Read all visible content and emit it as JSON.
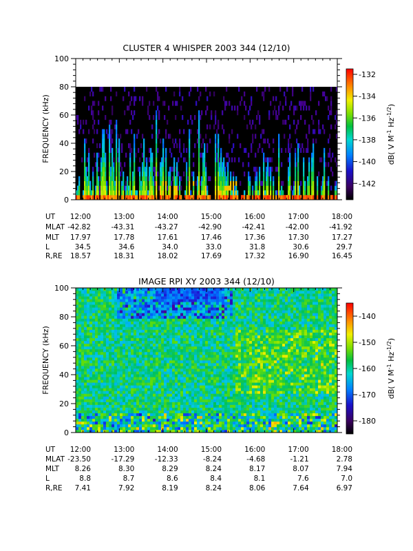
{
  "chart_data": [
    {
      "type": "heatmap",
      "title": "CLUSTER 4 WHISPER 2003 344 (12/10)",
      "ylabel": "FREQUENCY (kHz)",
      "ylim": [
        0,
        100
      ],
      "yticks": [
        "0",
        "20",
        "40",
        "60",
        "80",
        "100"
      ],
      "data_ylim": [
        0,
        80
      ],
      "colorbar": {
        "label": "dB( V M",
        "sup1": "-1",
        "mid": " Hz",
        "sup2": "-1/2",
        "end": ")",
        "range": [
          -143.5,
          -131.5
        ],
        "ticks": [
          "-132",
          "-134",
          "-136",
          "-138",
          "-140",
          "-142"
        ]
      },
      "xticks": [
        "12:00",
        "13:00",
        "14:00",
        "15:00",
        "16:00",
        "17:00",
        "18:00"
      ],
      "x_range_hours": [
        12,
        18
      ],
      "ephemeris": [
        {
          "label": "UT",
          "values": [
            "12:00",
            "13:00",
            "14:00",
            "15:00",
            "16:00",
            "17:00",
            "18:00"
          ]
        },
        {
          "label": "MLAT",
          "values": [
            "-42.82",
            "-43.31",
            "-43.27",
            "-42.90",
            "-42.41",
            "-42.00",
            "-41.92"
          ]
        },
        {
          "label": "MLT",
          "values": [
            "17.97",
            "17.78",
            "17.61",
            "17.46",
            "17.36",
            "17.30",
            "17.27"
          ]
        },
        {
          "label": "L",
          "values": [
            "34.5",
            "34.6",
            "34.0",
            "33.0",
            "31.8",
            "30.6",
            "29.7"
          ]
        },
        {
          "label": "R,RE",
          "values": [
            "18.57",
            "18.31",
            "18.02",
            "17.69",
            "17.32",
            "16.90",
            "16.45"
          ]
        }
      ]
    },
    {
      "type": "heatmap",
      "title": "IMAGE RPI XY 2003 344 (12/10)",
      "ylabel": "FREQUENCY (kHz)",
      "ylim": [
        0,
        100
      ],
      "yticks": [
        "0",
        "20",
        "40",
        "60",
        "80",
        "100"
      ],
      "data_ylim": [
        0,
        100
      ],
      "colorbar": {
        "label": "dB( V M",
        "sup1": "-1",
        "mid": " Hz",
        "sup2": "-1/2",
        "end": ")",
        "range": [
          -185,
          -135
        ],
        "ticks": [
          "-140",
          "-150",
          "-160",
          "-170",
          "-180"
        ]
      },
      "xticks": [
        "12:00",
        "13:00",
        "14:00",
        "15:00",
        "16:00",
        "17:00",
        "18:00"
      ],
      "x_range_hours": [
        12,
        18
      ],
      "ephemeris": [
        {
          "label": "UT",
          "values": [
            "12:00",
            "13:00",
            "14:00",
            "15:00",
            "16:00",
            "17:00",
            "18:00"
          ]
        },
        {
          "label": "MLAT",
          "values": [
            "-23.50",
            "-17.29",
            "-12.33",
            "-8.24",
            "-4.68",
            "-1.21",
            "2.78"
          ]
        },
        {
          "label": "MLT",
          "values": [
            "8.26",
            "8.30",
            "8.29",
            "8.24",
            "8.17",
            "8.07",
            "7.94"
          ]
        },
        {
          "label": "L",
          "values": [
            "8.8",
            "8.7",
            "8.6",
            "8.4",
            "8.1",
            "7.6",
            "7.0"
          ]
        },
        {
          "label": "R,RE",
          "values": [
            "7.41",
            "7.92",
            "8.19",
            "8.24",
            "8.06",
            "7.64",
            "6.97"
          ]
        }
      ]
    }
  ]
}
